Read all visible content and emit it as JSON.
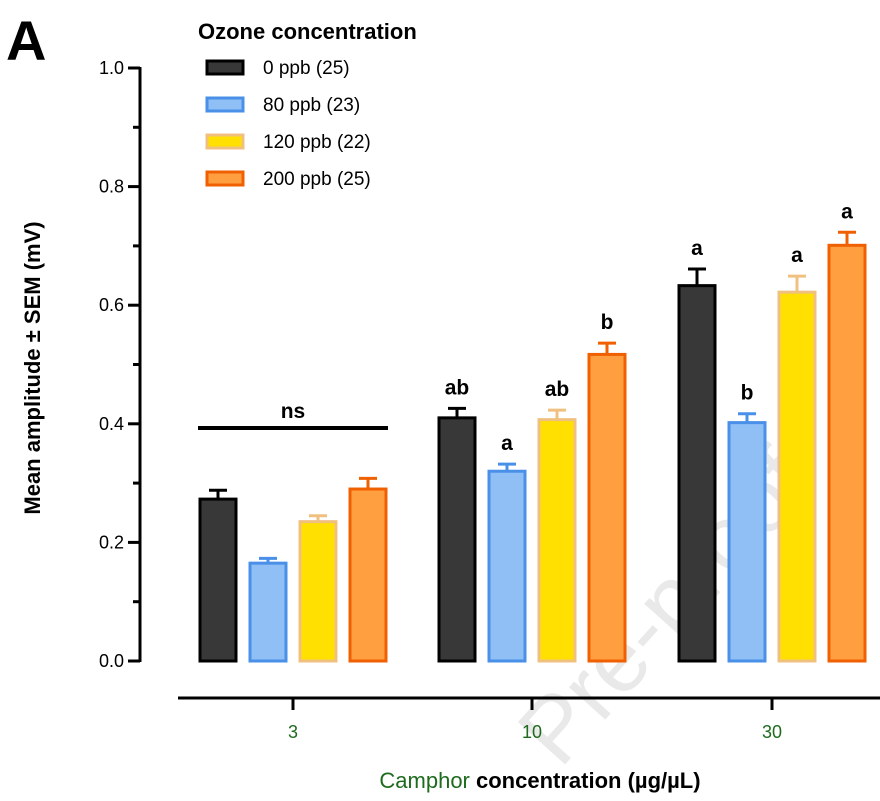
{
  "panel_label": "A",
  "watermark": "Pre-proof",
  "chart_data": {
    "type": "bar",
    "categories": [
      "3",
      "10",
      "30"
    ],
    "xlabel_highlight": "Camphor",
    "xlabel_rest": " concentration (µg/µL)",
    "ylabel": "Mean amplitude ± SEM (mV)",
    "ylim": [
      0,
      1.0
    ],
    "yticks": [
      "0.0",
      "0.2",
      "0.4",
      "0.6",
      "0.8",
      "1.0"
    ],
    "legend_title": "Ozone concentration",
    "legend_placement": "top-left",
    "colors": {
      "category_label": "#1e6b1e",
      "x_highlight": "#1e6b1e"
    },
    "series": [
      {
        "name": "0 ppb (25)",
        "fill": "#383838",
        "stroke": "#000000",
        "values": [
          0.273,
          0.41,
          0.633
        ],
        "errors": [
          0.015,
          0.016,
          0.028
        ],
        "labels": [
          "",
          "ab",
          "a"
        ]
      },
      {
        "name": "80 ppb (23)",
        "fill": "#8fbff5",
        "stroke": "#4a90e8",
        "values": [
          0.165,
          0.32,
          0.402
        ],
        "errors": [
          0.008,
          0.012,
          0.015
        ],
        "labels": [
          "",
          "a",
          "b"
        ]
      },
      {
        "name": "120 ppb (22)",
        "fill": "#ffe000",
        "stroke": "#f0c080",
        "values": [
          0.235,
          0.407,
          0.622
        ],
        "errors": [
          0.01,
          0.016,
          0.027
        ],
        "labels": [
          "",
          "ab",
          "a"
        ]
      },
      {
        "name": "200 ppb (25)",
        "fill": "#ff9f40",
        "stroke": "#f06000",
        "values": [
          0.29,
          0.517,
          0.701
        ],
        "errors": [
          0.018,
          0.019,
          0.022
        ],
        "labels": [
          "",
          "b",
          "a"
        ]
      }
    ],
    "group_annotation": {
      "category": "3",
      "text": "ns"
    }
  }
}
